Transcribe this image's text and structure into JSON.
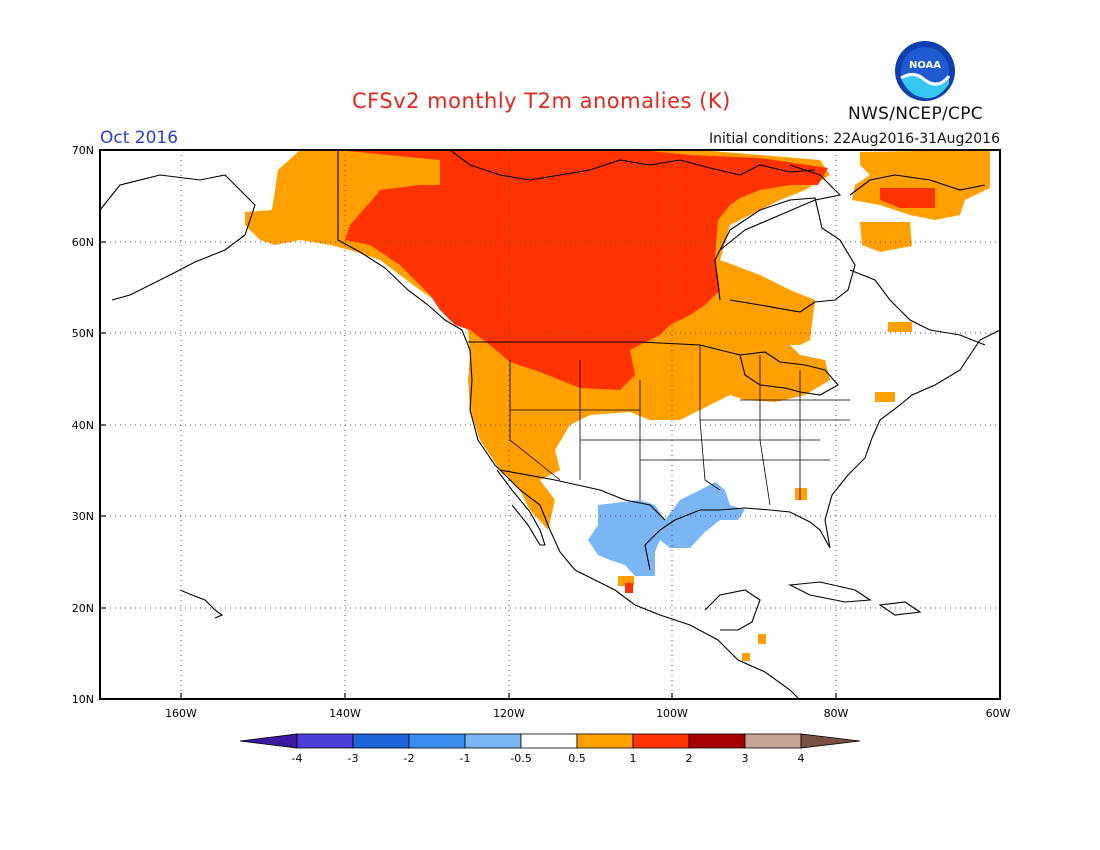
{
  "header": {
    "title": "CFSv2 monthly T2m anomalies (K)",
    "month": "Oct 2016",
    "init_conditions": "Initial conditions: 22Aug2016-31Aug2016",
    "org": "NWS/NCEP/CPC",
    "logo_text": "NOAA"
  },
  "axes": {
    "lat_labels": [
      "70N",
      "60N",
      "50N",
      "40N",
      "30N",
      "20N",
      "10N"
    ],
    "lon_labels": [
      "160W",
      "140W",
      "120W",
      "100W",
      "80W",
      "60W"
    ]
  },
  "colorbar": {
    "labels": [
      "-4",
      "-3",
      "-2",
      "-1",
      "-0.5",
      "0.5",
      "1",
      "2",
      "3",
      "4"
    ],
    "colors": [
      "#3a1aa0",
      "#4a3ed6",
      "#1f63d8",
      "#3b8ef0",
      "#7ab6f4",
      "#ffffff",
      "#ff9f00",
      "#ff3300",
      "#a50000",
      "#c8a494",
      "#7a5040"
    ]
  },
  "legend_colors": {
    "anom_0_5_1": "#ff9f00",
    "anom_1_2": "#ff3300",
    "anom_neg_0_5_1": "#7ab6f4"
  }
}
